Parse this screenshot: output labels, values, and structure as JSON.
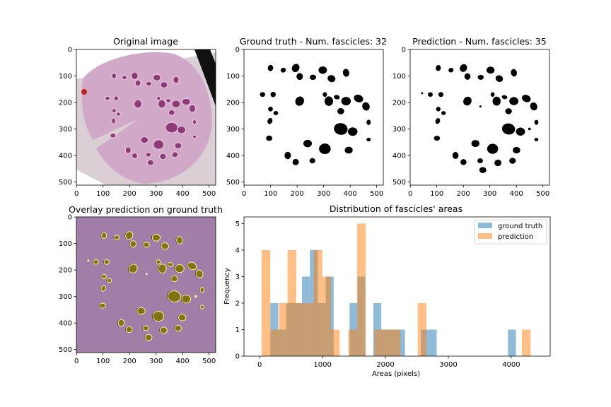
{
  "panels": {
    "original": {
      "title": "Original image"
    },
    "ground_truth": {
      "title": "Ground truth - Num. fascicles: 32"
    },
    "prediction": {
      "title": "Prediction - Num. fascicles: 35"
    },
    "overlay": {
      "title": "Overlay prediction on ground truth"
    }
  },
  "image_axis": {
    "x_ticks": [
      "0",
      "100",
      "200",
      "300",
      "400",
      "500"
    ],
    "y_ticks": [
      "0",
      "100",
      "200",
      "300",
      "400",
      "500"
    ]
  },
  "colors": {
    "ground_truth": "#1f77b4",
    "prediction": "#ff7f0e",
    "overlay_bg": "#a07ea8",
    "overlay_fill": "#7d7414",
    "overlay_pred_only": "#fff2a0",
    "tissue": "#8c3a78"
  },
  "chart_data": {
    "type": "histogram",
    "title": "Distribution of fascicles' areas",
    "xlabel": "Areas (pixels)",
    "ylabel": "Frequency",
    "xlim": [
      -250,
      4620
    ],
    "ylim": [
      0,
      5.25
    ],
    "x_ticks": [
      0,
      1000,
      2000,
      3000,
      4000
    ],
    "y_ticks": [
      0,
      1,
      2,
      3,
      4,
      5
    ],
    "legend_position": "top-right",
    "series": [
      {
        "name": "ground truth",
        "color": "#1f77b4",
        "alpha": 0.5,
        "bins": [
          [
            169,
            295,
            2
          ],
          [
            295,
            421,
            1
          ],
          [
            421,
            547,
            2
          ],
          [
            547,
            673,
            2
          ],
          [
            673,
            799,
            3
          ],
          [
            799,
            925,
            4
          ],
          [
            925,
            1051,
            2
          ],
          [
            1051,
            1177,
            3
          ],
          [
            1177,
            1303,
            0
          ],
          [
            1303,
            1429,
            0
          ],
          [
            1429,
            1555,
            2
          ],
          [
            1555,
            1681,
            3
          ],
          [
            1681,
            1807,
            0
          ],
          [
            1807,
            1933,
            2
          ],
          [
            1933,
            2059,
            1
          ],
          [
            2059,
            2185,
            1
          ],
          [
            2185,
            2311,
            1
          ],
          [
            2311,
            2437,
            0
          ],
          [
            2437,
            2563,
            0
          ],
          [
            2563,
            2689,
            1
          ],
          [
            2689,
            2815,
            1
          ],
          [
            2815,
            2941,
            0
          ],
          [
            2941,
            3067,
            0
          ],
          [
            3067,
            3193,
            0
          ],
          [
            3193,
            3319,
            0
          ],
          [
            3319,
            3445,
            0
          ],
          [
            3445,
            3571,
            0
          ],
          [
            3571,
            3697,
            0
          ],
          [
            3697,
            3823,
            0
          ],
          [
            3823,
            3949,
            0
          ],
          [
            3949,
            4075,
            1
          ]
        ]
      },
      {
        "name": "prediction",
        "color": "#ff7f0e",
        "alpha": 0.5,
        "bins": [
          [
            30,
            168,
            4
          ],
          [
            168,
            306,
            1
          ],
          [
            306,
            444,
            2
          ],
          [
            444,
            582,
            4
          ],
          [
            582,
            720,
            2
          ],
          [
            720,
            858,
            2
          ],
          [
            858,
            996,
            4
          ],
          [
            996,
            1134,
            3
          ],
          [
            1134,
            1272,
            1
          ],
          [
            1272,
            1410,
            0
          ],
          [
            1410,
            1548,
            1
          ],
          [
            1548,
            1686,
            5
          ],
          [
            1686,
            1824,
            0
          ],
          [
            1824,
            1962,
            1
          ],
          [
            1962,
            2100,
            1
          ],
          [
            2100,
            2238,
            1
          ],
          [
            2238,
            2376,
            0
          ],
          [
            2376,
            2514,
            0
          ],
          [
            2514,
            2652,
            2
          ],
          [
            2652,
            2790,
            0
          ],
          [
            2790,
            2928,
            0
          ],
          [
            2928,
            3066,
            0
          ],
          [
            3066,
            3204,
            0
          ],
          [
            3204,
            3342,
            0
          ],
          [
            3342,
            3480,
            0
          ],
          [
            3480,
            3618,
            0
          ],
          [
            3618,
            3756,
            0
          ],
          [
            3756,
            3894,
            0
          ],
          [
            3894,
            4032,
            0
          ],
          [
            4032,
            4170,
            0
          ],
          [
            4170,
            4308,
            1
          ]
        ]
      }
    ]
  }
}
